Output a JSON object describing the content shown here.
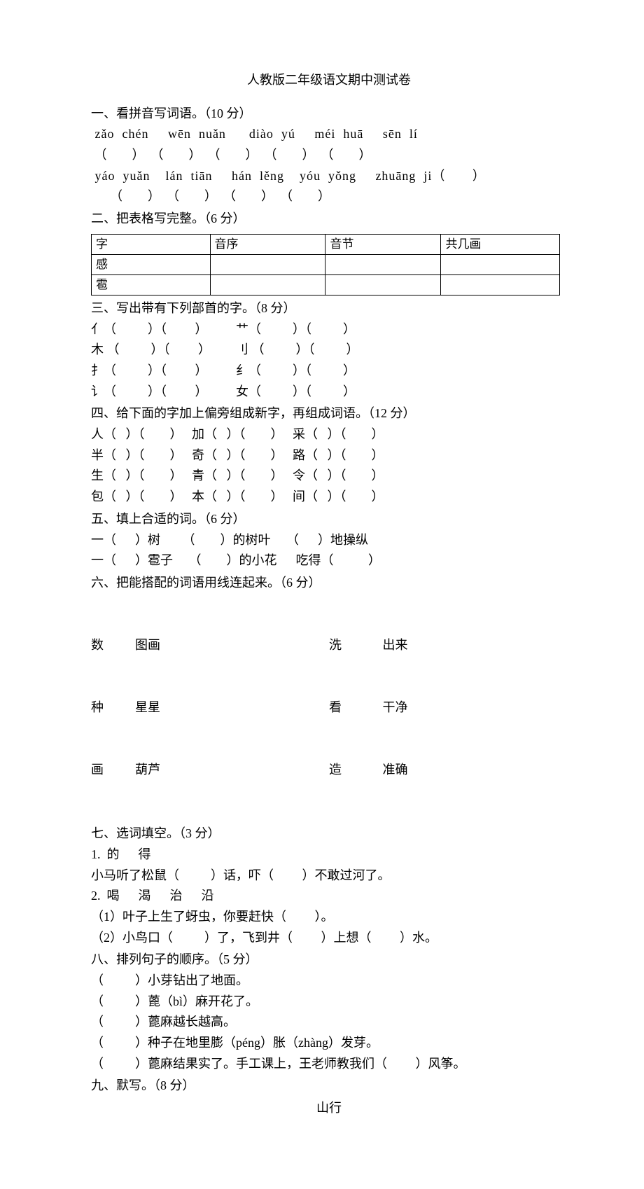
{
  "title": "人教版二年级语文期中测试卷",
  "q1": {
    "heading": "一、看拼音写词语。（10 分）",
    "pinyin_row1": " zǎo  chén     wēn  nuǎn      diào  yú     méi  huā     sēn  lí",
    "blanks_row1": " （        ）  （        ）  （        ）  （        ）  （        ）",
    "pinyin_row2": " yáo  yuǎn    lán  tiān     hán  lěng    yóu  yǒng     zhuāng  ji（       ）",
    "blanks_row2": "      （        ）  （        ）  （        ）  （        ）"
  },
  "q2": {
    "heading": "二、把表格写完整。（6 分）",
    "headers": [
      "字",
      "音序",
      "音节",
      "共几画"
    ],
    "rows": [
      [
        "感",
        "",
        "",
        ""
      ],
      [
        "雹",
        "",
        "",
        ""
      ]
    ],
    "col_widths": [
      "170px",
      "165px",
      "165px",
      "170px"
    ]
  },
  "q3": {
    "heading": "三、写出带有下列部首的字。（8 分）",
    "lines": [
      "亻（          ）（         ）         艹（          ）（          ）",
      "木 （          ）（         ）        刂 （          ）（          ）",
      "扌（          ）（         ）         纟（          ）（          ）",
      "讠（          ）（         ）         女（          ）（          ）"
    ]
  },
  "q4": {
    "heading": "四、给下面的字加上偏旁组成新字，再组成词语。（12 分）",
    "lines": [
      "人（   ）（        ）   加（   ）（        ）   采（   ）（        ）",
      "半（   ）（        ）   奇（   ）（        ）   路（   ）（        ）",
      "生（   ）（        ）   青（   ）（        ）   令（   ）（        ）",
      "包（   ）（        ）   本（   ）（        ）   间（   ）（        ）"
    ]
  },
  "q5": {
    "heading": "五、填上合适的词。（6 分）",
    "lines": [
      "一（      ）树       （        ）的树叶     （      ）地操纵",
      "一（      ）雹子     （        ）的小花      吃得（           ）"
    ]
  },
  "q6": {
    "heading": "六、把能搭配的词语用线连起来。（6 分）",
    "left_rows": [
      "数          图画",
      "种          星星",
      "画          葫芦"
    ],
    "right_rows": [
      "洗             出来",
      "看             干净",
      "造             准确"
    ]
  },
  "q7": {
    "heading": "七、选词填空。（3 分）",
    "item1_label": "1.  的      得",
    "item1_line": "小马听了松鼠（          ）话，吓（         ）不敢过河了。",
    "item2_label": "2.  喝      渴      治      沿",
    "item2_line1": "（1）叶子上生了蚜虫，你要赶快（         ）。",
    "item2_line2": "（2）小鸟口（          ）了，飞到井（         ）上想（         ）水。"
  },
  "q8": {
    "heading": "八、排列句子的顺序。（5 分）",
    "lines": [
      "（          ）小芽钻出了地面。",
      "（          ）蓖（bì）麻开花了。",
      "（          ）蓖麻越长越高。",
      "（          ）种子在地里膨（péng）胀（zhàng）发芽。",
      "（          ）蓖麻结果实了。手工课上，王老师教我们（         ）风筝。"
    ]
  },
  "q9": {
    "heading": "九、默写。（8 分）",
    "poem_title": "山行"
  }
}
